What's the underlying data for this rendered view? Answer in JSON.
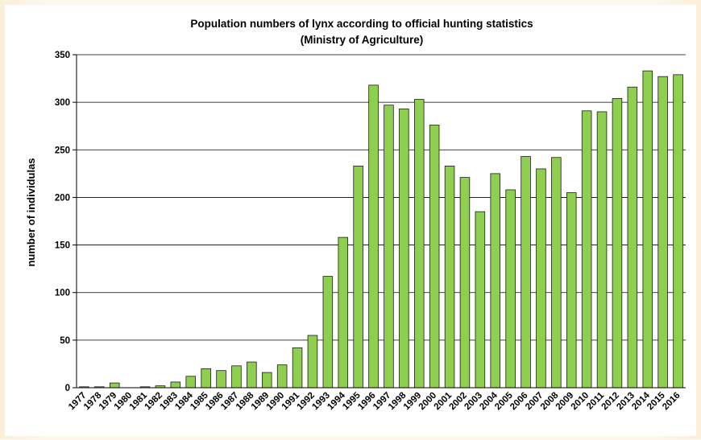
{
  "chart_data": {
    "type": "bar",
    "title": "Population numbers of lynx according to official hunting statistics",
    "subtitle": "(Ministry of Agriculture)",
    "xlabel": "",
    "ylabel": "number of individulas",
    "ylim": [
      0,
      350
    ],
    "yticks": [
      0,
      50,
      100,
      150,
      200,
      250,
      300,
      350
    ],
    "grid": true,
    "bar_color": "#8fcf4f",
    "categories": [
      "1977",
      "1978",
      "1979",
      "1980",
      "1981",
      "1982",
      "1983",
      "1984",
      "1985",
      "1986",
      "1987",
      "1988",
      "1989",
      "1990",
      "1991",
      "1992",
      "1993",
      "1994",
      "1995",
      "1996",
      "1997",
      "1998",
      "1999",
      "2000",
      "2001",
      "2002",
      "2003",
      "2004",
      "2005",
      "2006",
      "2007",
      "2008",
      "2009",
      "2010",
      "2011",
      "2012",
      "2013",
      "2014",
      "2015",
      "2016"
    ],
    "values": [
      1,
      1,
      5,
      0,
      1,
      2,
      6,
      12,
      20,
      18,
      23,
      27,
      16,
      24,
      42,
      55,
      117,
      158,
      233,
      318,
      297,
      293,
      303,
      276,
      233,
      221,
      185,
      225,
      208,
      243,
      230,
      242,
      205,
      291,
      290,
      304,
      316,
      333,
      327,
      329
    ]
  }
}
